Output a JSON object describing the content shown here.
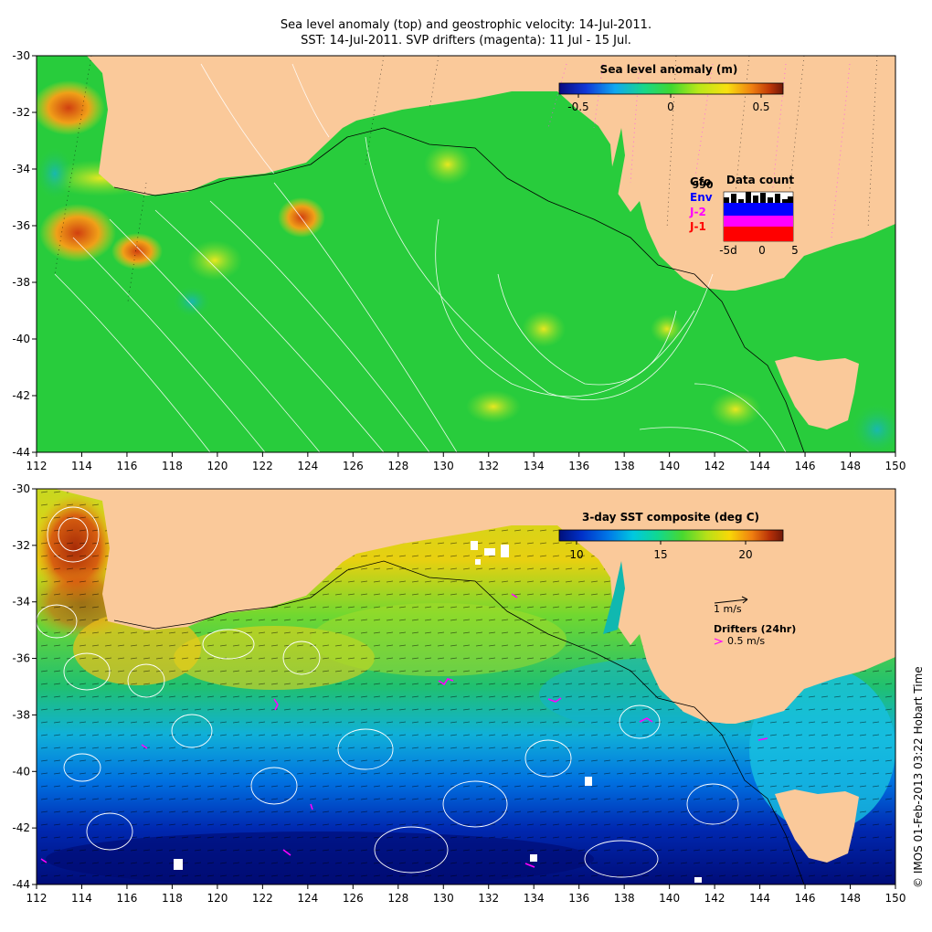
{
  "title": {
    "line1": "Sea level anomaly (top) and geostrophic velocity: 14-Jul-2011.",
    "line2": "SST: 14-Jul-2011. SVP drifters (magenta): 11 Jul - 15 Jul."
  },
  "credit": "© IMOS 01-Feb-2013 03:22 Hobart Time",
  "axes": {
    "lon_ticks": [
      "112",
      "114",
      "116",
      "118",
      "120",
      "122",
      "124",
      "126",
      "128",
      "130",
      "132",
      "134",
      "136",
      "138",
      "140",
      "142",
      "144",
      "146",
      "148",
      "150"
    ],
    "lat_ticks": [
      "-30",
      "-32",
      "-34",
      "-36",
      "-38",
      "-40",
      "-42",
      "-44"
    ],
    "lon_range": [
      112,
      150
    ],
    "lat_range": [
      -44,
      -30
    ]
  },
  "top_panel": {
    "colorbar_title": "Sea level anomaly (m)",
    "colorbar_ticks": [
      "-0.5",
      "0",
      "0.5"
    ],
    "colorbar_colors": [
      "#0a0a80",
      "#1038d8",
      "#10a8f0",
      "#18d888",
      "#40d830",
      "#b8e818",
      "#f8e010",
      "#f08010",
      "#c03808",
      "#701808"
    ],
    "data_count": {
      "title": "Data count",
      "labels": [
        {
          "text": "Gfo",
          "color": "#000000"
        },
        {
          "text": "Env",
          "color": "#0000ff"
        },
        {
          "text": "J-2",
          "color": "#ff00ff"
        },
        {
          "text": "J-1",
          "color": "#ff0000"
        }
      ],
      "top_value": "990",
      "x_ticks": [
        "-5d",
        "0",
        "5"
      ]
    }
  },
  "bottom_panel": {
    "colorbar_title": "3-day SST composite (deg C)",
    "colorbar_ticks": [
      "10",
      "15",
      "20"
    ],
    "colorbar_colors": [
      "#00107a",
      "#0030c8",
      "#0078e8",
      "#00c8e0",
      "#10d890",
      "#48d830",
      "#b8e018",
      "#f8d808",
      "#f08010",
      "#b83008",
      "#701808"
    ],
    "velocity_scale": "1 m/s",
    "drifters_label": "Drifters (24hr)",
    "drifters_scale": "0.5 m/s"
  },
  "colors": {
    "land": "#fac99a",
    "ocean_mid": "#28cc3c",
    "drifter": "#ff00ff"
  }
}
